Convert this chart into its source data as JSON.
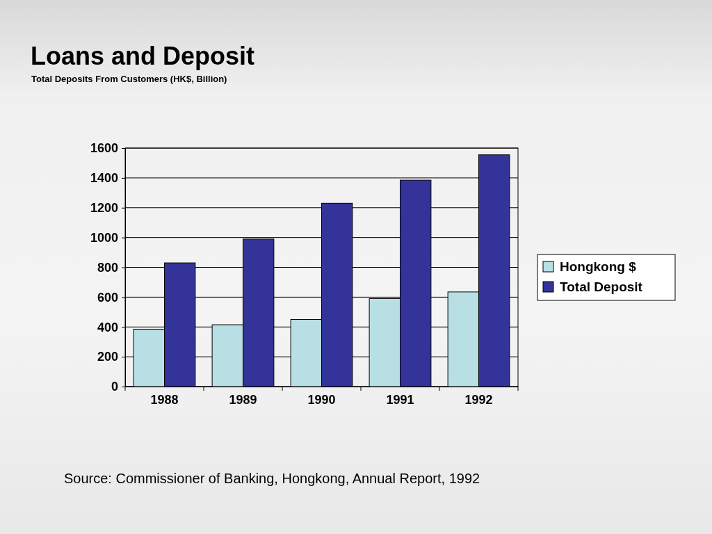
{
  "chart_data": {
    "type": "bar",
    "title": "Loans and Deposit",
    "subtitle": "Total Deposits From Customers (HK$, Billion)",
    "categories": [
      "1988",
      "1989",
      "1990",
      "1991",
      "1992"
    ],
    "series": [
      {
        "name": "Hongkong $",
        "color": "#b8e0e4",
        "values": [
          385,
          415,
          450,
          590,
          635
        ]
      },
      {
        "name": "Total Deposit",
        "color": "#333399",
        "values": [
          830,
          990,
          1230,
          1385,
          1555
        ]
      }
    ],
    "ylim": [
      0,
      1600
    ],
    "yticks": [
      0,
      200,
      400,
      600,
      800,
      1000,
      1200,
      1400,
      1600
    ],
    "grid": "y",
    "legend": "right",
    "annotations": [
      "Source: Commissioner of Banking, Hongkong, Annual Report, 1992"
    ]
  }
}
